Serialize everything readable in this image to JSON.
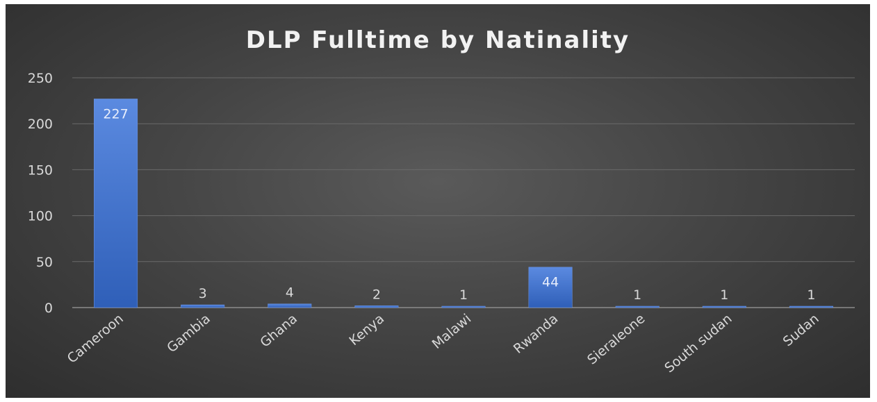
{
  "chart_data": {
    "type": "bar",
    "title": "DLP Fulltime by Natinality",
    "categories": [
      "Cameroon",
      "Gambia",
      "Ghana",
      "Kenya",
      "Malawi",
      "Rwanda",
      "Sieraleone",
      "South sudan",
      "Sudan"
    ],
    "values": [
      227,
      3,
      4,
      2,
      1,
      44,
      1,
      1,
      1
    ],
    "ylim": [
      0,
      250
    ],
    "yticks": [
      0,
      50,
      100,
      150,
      200,
      250
    ],
    "grid": true,
    "legend": "none",
    "bar_color": "#4472c4",
    "data_labels": [
      "227",
      "3",
      "4",
      "2",
      "1",
      "44",
      "1",
      "1",
      "1"
    ]
  }
}
